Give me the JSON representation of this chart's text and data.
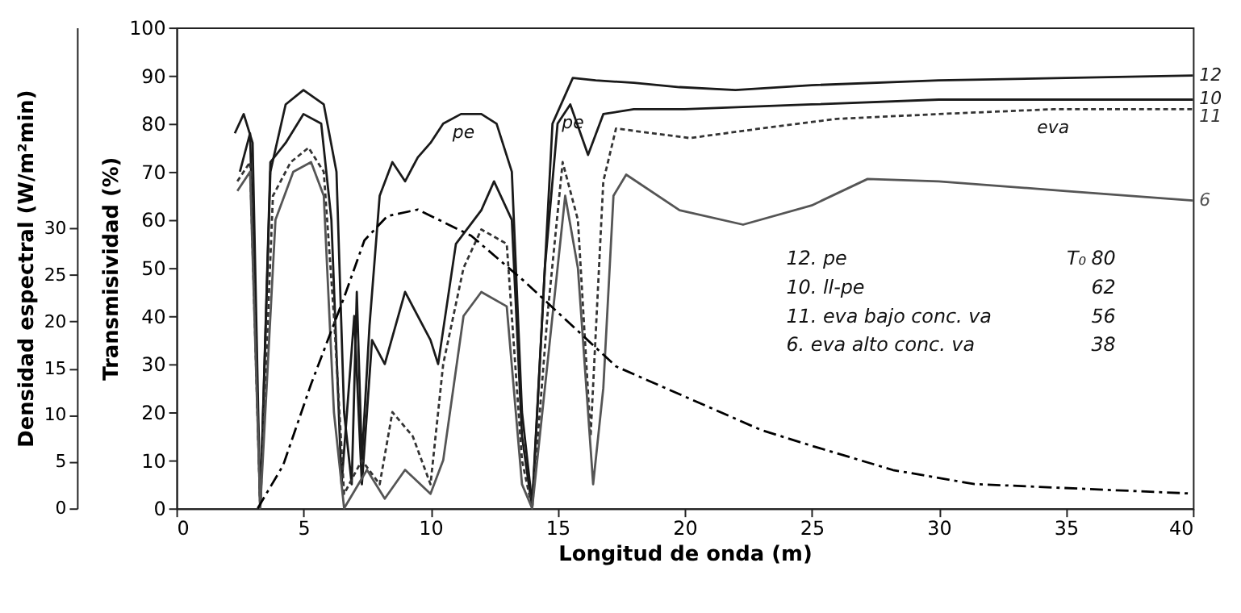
{
  "chart_data": {
    "type": "line",
    "xlabel": "Longitud de onda (m)",
    "ylabel": "Transmisividad (%)",
    "y2label": "Densidad espectral (W/m²min)",
    "xlim": [
      0,
      40
    ],
    "xticks": [
      0,
      5,
      10,
      15,
      20,
      25,
      30,
      35,
      40
    ],
    "ylim": [
      0,
      100
    ],
    "yticks": [
      0,
      10,
      20,
      30,
      40,
      50,
      60,
      70,
      80,
      90,
      100
    ],
    "y2lim": [
      0,
      51.5
    ],
    "y2ticks": [
      0,
      5,
      10,
      15,
      20,
      25,
      30
    ],
    "grid": false,
    "marker": "none",
    "series": [
      {
        "name": "12",
        "color": "#1a1a1a",
        "line_style": "solid",
        "x": [
          2.3,
          2.65,
          3.0,
          3.3,
          3.7,
          4.3,
          5.0,
          5.8,
          6.3,
          6.6,
          6.9,
          7.1,
          7.3,
          7.6,
          8.0,
          8.5,
          9.0,
          9.5,
          10.0,
          10.5,
          11.2,
          12.0,
          12.6,
          13.2,
          13.6,
          14.0,
          14.4,
          14.8,
          15.6,
          16.5,
          18,
          19.8,
          22,
          25,
          30,
          35,
          40
        ],
        "values": [
          78,
          82,
          76,
          0,
          70,
          84,
          87,
          84,
          70,
          20,
          5,
          45,
          10,
          38,
          65,
          72,
          68,
          73,
          76,
          80,
          82,
          82,
          80,
          70,
          20,
          1,
          40,
          80,
          89.5,
          89,
          88.5,
          87.6,
          87,
          88,
          89,
          89.5,
          90
        ]
      },
      {
        "name": "10",
        "color": "#1a1a1a",
        "line_style": "solid",
        "x": [
          2.5,
          2.9,
          3.3,
          3.7,
          4.3,
          5.0,
          5.7,
          6.1,
          6.5,
          7.0,
          7.3,
          7.7,
          8.2,
          9.0,
          10.0,
          10.3,
          11,
          12,
          12.5,
          13.2,
          13.6,
          14.0,
          14.5,
          15,
          15.5,
          16.2,
          16.8,
          18,
          20,
          25,
          30,
          35,
          40
        ],
        "values": [
          70,
          78,
          0,
          72,
          76,
          82,
          80,
          60,
          5,
          40,
          5,
          35,
          30,
          45,
          35,
          30,
          55,
          62,
          68,
          60,
          15,
          0,
          50,
          80,
          84,
          73.5,
          82,
          83,
          83,
          84,
          85,
          85,
          85
        ]
      },
      {
        "name": "11",
        "color": "#333333",
        "line_style": "dotted",
        "x": [
          2.4,
          2.9,
          3.3,
          3.8,
          4.5,
          5.2,
          5.8,
          6.2,
          6.6,
          7.3,
          8.0,
          8.5,
          9.3,
          10,
          10.5,
          11.3,
          12,
          13,
          13.6,
          14,
          14.6,
          15.2,
          15.8,
          16.3,
          16.8,
          17.3,
          20.2,
          23,
          26,
          30,
          34.5,
          40
        ],
        "values": [
          68,
          72,
          0,
          65,
          72,
          75,
          70,
          40,
          3,
          10,
          5,
          20,
          15,
          5,
          30,
          50,
          58,
          55,
          10,
          0,
          40,
          72,
          60,
          15,
          68,
          79,
          77,
          79,
          81,
          82,
          83,
          83
        ]
      },
      {
        "name": "6",
        "color": "#555555",
        "line_style": "solid",
        "x": [
          2.4,
          2.9,
          3.3,
          3.9,
          4.6,
          5.3,
          5.8,
          6.2,
          6.6,
          7.5,
          8.2,
          9,
          10,
          10.5,
          11.3,
          12,
          13,
          13.6,
          14,
          14.7,
          15.3,
          15.8,
          16.4,
          16.8,
          17.2,
          17.7,
          19.8,
          22.3,
          25,
          27.2,
          30,
          35,
          40
        ],
        "values": [
          66,
          70,
          0,
          60,
          70,
          72,
          65,
          20,
          0,
          8,
          2,
          8,
          3,
          10,
          40,
          45,
          42,
          5,
          0,
          35,
          65,
          50,
          5,
          25,
          65,
          69.4,
          62,
          59,
          63,
          68.5,
          68,
          66,
          64
        ]
      },
      {
        "color": "#000000",
        "line_style": "dashed",
        "axis": "y2",
        "x": [
          3.2,
          4.2,
          5.3,
          6.6,
          7.4,
          8.3,
          9.5,
          11.6,
          13.7,
          17.3,
          23,
          25,
          28.2,
          31.4,
          35.6,
          39.8
        ],
        "values": [
          0,
          4.6,
          13.3,
          22.6,
          28.7,
          31.3,
          32,
          29.2,
          24.3,
          15.2,
          8.4,
          6.7,
          4.1,
          2.6,
          2.1,
          1.6
        ]
      }
    ],
    "annotations": [
      {
        "text": "pe",
        "x": 11.3,
        "y": 82
      },
      {
        "text": "pe",
        "x": 15.6,
        "y": 84
      },
      {
        "text": "eva",
        "x": 34.5,
        "y": 83
      },
      "12. pe",
      "10. ll-pe",
      "11. eva bajo conc. va",
      "6. eva alto conc. va",
      "T₀",
      "80",
      "62",
      "56",
      "38"
    ]
  }
}
